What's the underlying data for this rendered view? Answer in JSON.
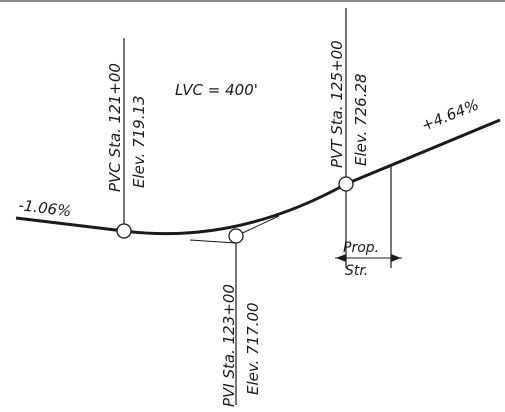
{
  "grades": {
    "entry": "-1.06%",
    "exit": "+4.64%"
  },
  "curve_length": "LVC = 400'",
  "pvc": {
    "station": "PVC Sta. 121+00",
    "elevation": "Elev. 719.13"
  },
  "pvt": {
    "station": "PVT Sta. 125+00",
    "elevation": "Elev. 726.28"
  },
  "pvi": {
    "station": "PVI Sta. 123+00",
    "elevation": "Elev. 717.00"
  },
  "structure": {
    "line1": "Prop.",
    "line2": "Str."
  },
  "colors": {
    "ink": "#1a1a1a",
    "background": "#ffffff"
  }
}
